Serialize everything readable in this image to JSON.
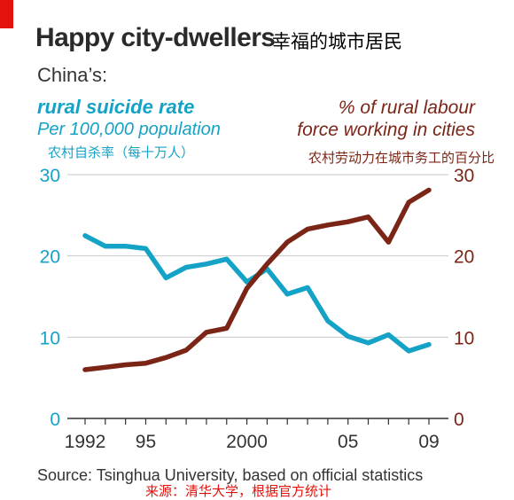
{
  "header": {
    "title": "Happy city-dwellers",
    "title_cn": "幸福的城市居民",
    "subtitle": "China’s:"
  },
  "legend": {
    "left_line1": "rural suicide rate",
    "left_line2": "Per 100,000 population",
    "left_cn": "农村自杀率（每十万人）",
    "right_line1": "% of rural labour",
    "right_line2": "force working in cities",
    "right_cn": "农村劳动力在城市务工的百分比"
  },
  "footer": {
    "source": "Source: Tsinghua University, based on official statistics",
    "source_cn": "来源：清华大学，根据官方统计"
  },
  "colors": {
    "suicide": "#14a3c7",
    "labour": "#7b2517",
    "brand_red": "#e3120b"
  },
  "chart_data": {
    "type": "line",
    "x": [
      1992,
      1993,
      1994,
      1995,
      1996,
      1997,
      1998,
      1999,
      2000,
      2001,
      2002,
      2003,
      2004,
      2005,
      2006,
      2007,
      2008,
      2009
    ],
    "x_tick_values": [
      1992,
      1995,
      2000,
      2005,
      2009
    ],
    "x_tick_labels": [
      "1992",
      "95",
      "2000",
      "05",
      "09"
    ],
    "xlim": [
      1992,
      2009
    ],
    "ylim_left": [
      0,
      30
    ],
    "ylim_right": [
      0,
      30
    ],
    "y_ticks_left": [
      "0",
      "10",
      "20",
      "30"
    ],
    "y_ticks_right": [
      "0",
      "10",
      "20",
      "30"
    ],
    "grid": true,
    "series": [
      {
        "name": "rural suicide rate",
        "axis": "left",
        "values": [
          22.5,
          21.2,
          21.2,
          20.9,
          17.3,
          18.6,
          19.0,
          19.6,
          16.8,
          18.4,
          15.3,
          16.1,
          12.0,
          10.1,
          9.3,
          10.3,
          8.3,
          9.1
        ]
      },
      {
        "name": "% of rural labour force working in cities",
        "axis": "right",
        "values": [
          6.0,
          6.3,
          6.6,
          6.8,
          7.5,
          8.4,
          10.6,
          11.1,
          16.0,
          19.0,
          21.7,
          23.3,
          23.8,
          24.2,
          24.8,
          21.7,
          26.6,
          28.1
        ]
      }
    ]
  }
}
